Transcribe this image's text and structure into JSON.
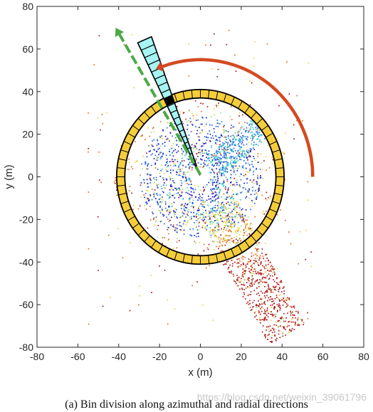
{
  "chart_data": {
    "type": "scatter",
    "title": "",
    "xlabel": "x (m)",
    "ylabel": "y (m)",
    "xlim": [
      -80,
      80
    ],
    "ylim": [
      -80,
      80
    ],
    "xticks": [
      -80,
      -60,
      -40,
      -20,
      0,
      20,
      40,
      60,
      80
    ],
    "yticks": [
      -80,
      -60,
      -40,
      -20,
      0,
      20,
      40,
      60,
      80
    ],
    "grid": false,
    "box": true,
    "ring": {
      "inner_radius": 37,
      "outer_radius": 41,
      "segments": 60,
      "fill": "#f5cd3c",
      "stroke": "#000000"
    },
    "radial_sector": {
      "direction_deg": 113,
      "half_width_deg": 3,
      "inner_radius": 1,
      "outer_radius": 70,
      "bins": 22,
      "fill": "#a6f4f4",
      "highlight_bin": {
        "inner_radius": 37,
        "outer_radius": 41,
        "fill": "#000000"
      }
    },
    "radial_arrow": {
      "from": [
        0,
        1
      ],
      "to": [
        -41.5,
        70
      ],
      "color": "#4aaa44"
    },
    "azimuth_arrow": {
      "radius": 55,
      "start_deg": 0,
      "end_deg": 110,
      "color": "#d44a22"
    },
    "point_cloud_colormap": [
      "#1a1ac4",
      "#2a6ae8",
      "#2ecccc",
      "#9ee080",
      "#f0d23a",
      "#e0702a",
      "#b01a1a"
    ]
  },
  "caption": "(a) Bin division along azimuthal and radial directions",
  "watermark": "https://blog.csdn.net/weixin_39061796"
}
